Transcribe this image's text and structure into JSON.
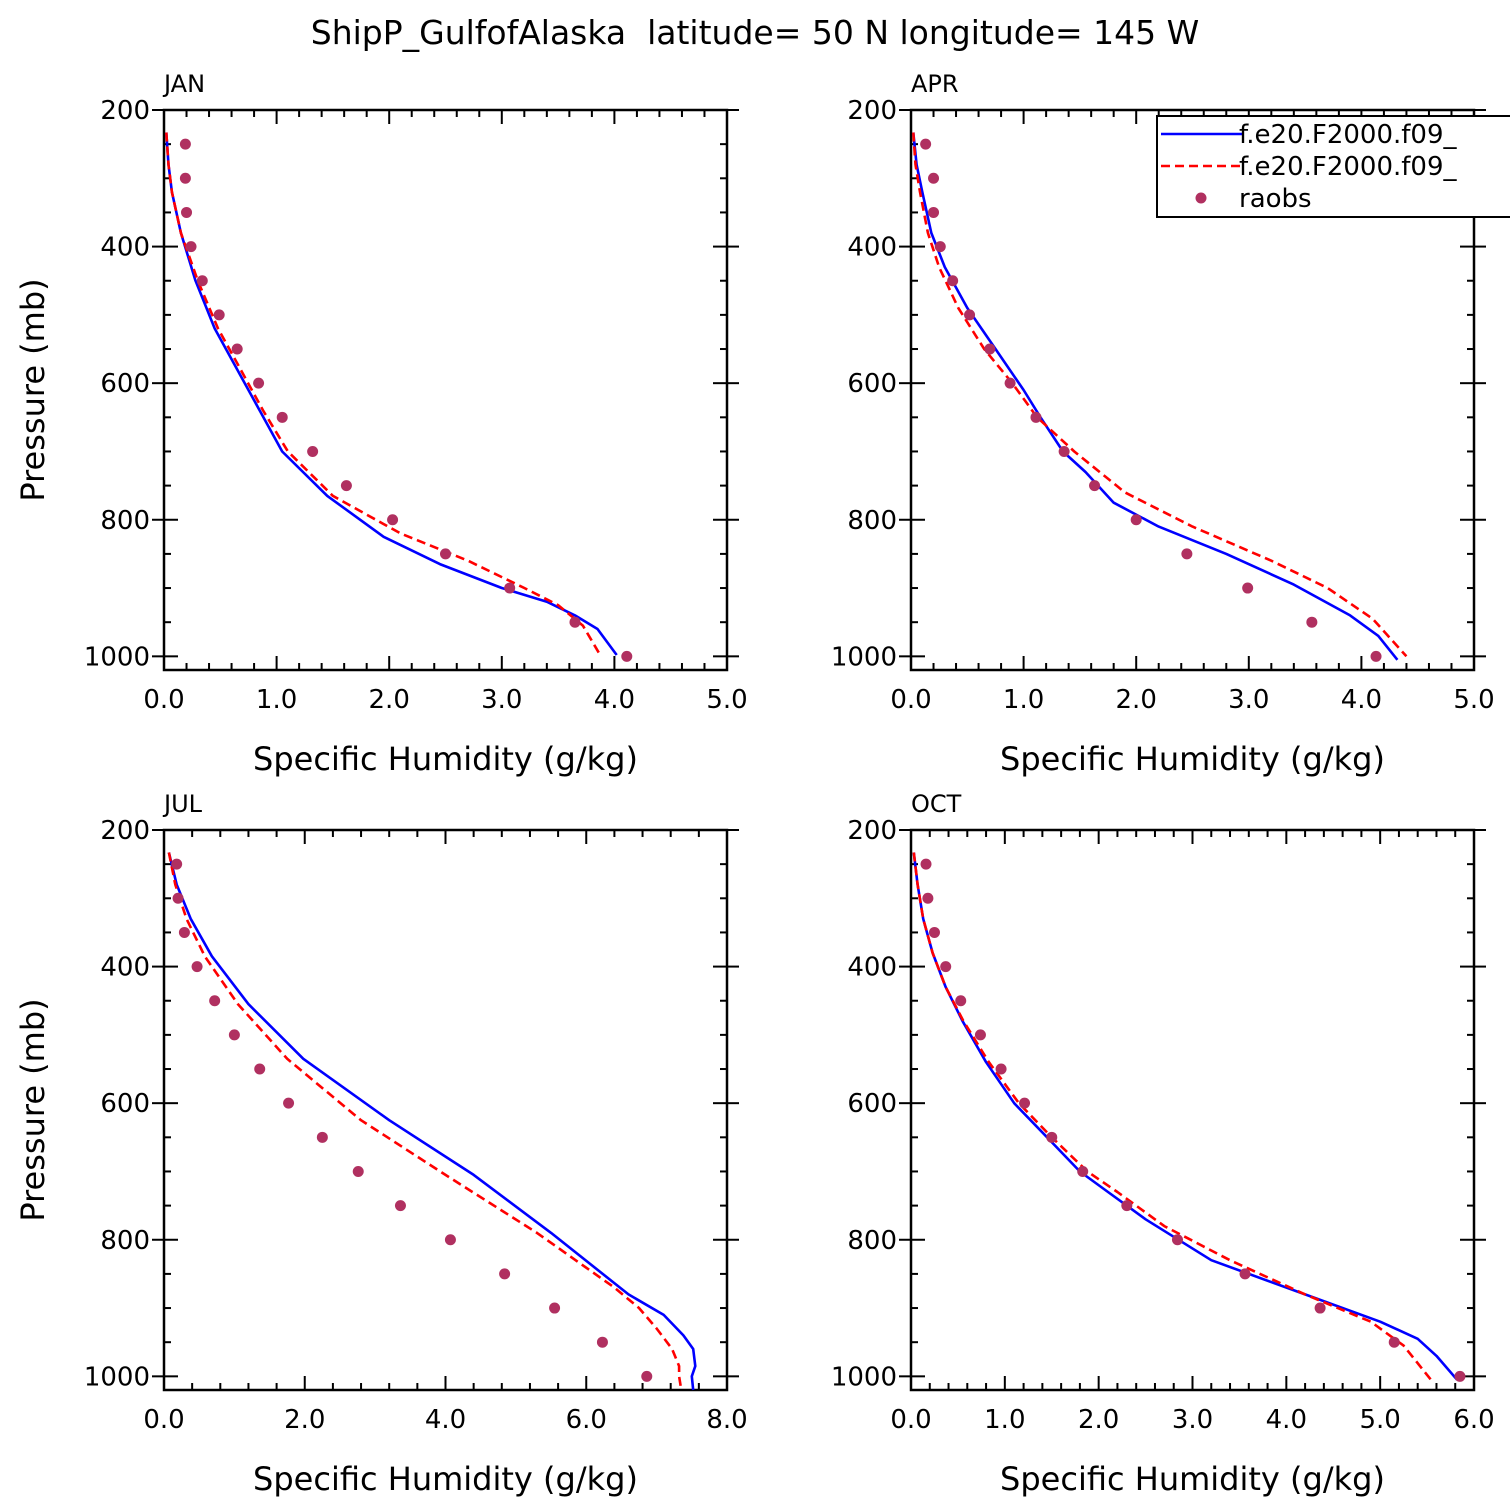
{
  "figure": {
    "title": "ShipP_GulfofAlaska  latitude= 50 N longitude= 145 W"
  },
  "legend": {
    "placement": "top-right",
    "entries": [
      {
        "label": "f.e20.F2000.f09_",
        "style": "solid",
        "color": "#0000ff"
      },
      {
        "label": "f.e20.F2000.f09_",
        "style": "dashed",
        "color": "#ff0000"
      },
      {
        "label": "raobs",
        "style": "marker",
        "color": "#b03060"
      }
    ]
  },
  "chart_data": [
    {
      "type": "line",
      "title": "JAN",
      "xlabel": "Specific Humidity (g/kg)",
      "ylabel": "Pressure (mb)",
      "xlim": [
        0,
        5
      ],
      "ylim": [
        1020,
        200
      ],
      "xticks": [
        0,
        1,
        2,
        3,
        4,
        5
      ],
      "xtick_labels": [
        "0.0",
        "1.0",
        "2.0",
        "3.0",
        "4.0",
        "5.0"
      ],
      "yticks": [
        200,
        400,
        600,
        800,
        1000
      ],
      "ytick_labels": [
        "200",
        "400",
        "600",
        "800",
        "1000"
      ],
      "series": [
        {
          "name": "f.e20.F2000.f09_",
          "style": "solid",
          "color": "#0000ff",
          "x": [
            0.02,
            0.04,
            0.07,
            0.15,
            0.28,
            0.45,
            0.65,
            0.85,
            1.05,
            1.45,
            1.95,
            2.45,
            3.0,
            3.4,
            3.65,
            3.85,
            4.02
          ],
          "y": [
            233,
            280,
            320,
            380,
            450,
            520,
            580,
            640,
            700,
            765,
            825,
            865,
            900,
            920,
            940,
            960,
            998
          ]
        },
        {
          "name": "f.e20.F2000.f09_",
          "style": "dashed",
          "color": "#ff0000",
          "x": [
            0.02,
            0.04,
            0.07,
            0.15,
            0.3,
            0.48,
            0.68,
            0.88,
            1.1,
            1.5,
            2.1,
            2.7,
            3.2,
            3.5,
            3.72,
            3.88
          ],
          "y": [
            233,
            280,
            320,
            380,
            450,
            520,
            580,
            640,
            700,
            765,
            820,
            860,
            900,
            925,
            955,
            1000
          ]
        }
      ],
      "points": {
        "name": "raobs",
        "color": "#b03060",
        "x": [
          0.19,
          0.19,
          0.2,
          0.24,
          0.34,
          0.49,
          0.65,
          0.84,
          1.05,
          1.32,
          1.62,
          2.03,
          2.5,
          3.07,
          3.65,
          4.11
        ],
        "y": [
          250,
          300,
          350,
          400,
          450,
          500,
          550,
          600,
          650,
          700,
          750,
          800,
          850,
          900,
          950,
          1000
        ]
      }
    },
    {
      "type": "line",
      "title": "APR",
      "xlabel": "Specific Humidity (g/kg)",
      "ylabel": "",
      "xlim": [
        0,
        5
      ],
      "ylim": [
        1020,
        200
      ],
      "xticks": [
        0,
        1,
        2,
        3,
        4,
        5
      ],
      "xtick_labels": [
        "0.0",
        "1.0",
        "2.0",
        "3.0",
        "4.0",
        "5.0"
      ],
      "yticks": [
        200,
        400,
        600,
        800,
        1000
      ],
      "ytick_labels": [
        "200",
        "400",
        "600",
        "800",
        "1000"
      ],
      "series": [
        {
          "name": "f.e20.F2000.f09_",
          "style": "solid",
          "color": "#0000ff",
          "x": [
            0.02,
            0.05,
            0.1,
            0.18,
            0.3,
            0.5,
            0.75,
            1.0,
            1.15,
            1.35,
            1.55,
            1.8,
            2.2,
            2.8,
            3.4,
            3.9,
            4.15,
            4.32
          ],
          "y": [
            233,
            280,
            320,
            380,
            430,
            490,
            550,
            610,
            650,
            700,
            730,
            775,
            810,
            850,
            895,
            940,
            970,
            1005
          ]
        },
        {
          "name": "f.e20.F2000.f09_",
          "style": "dashed",
          "color": "#ff0000",
          "x": [
            0.02,
            0.04,
            0.08,
            0.15,
            0.25,
            0.42,
            0.65,
            0.9,
            1.12,
            1.45,
            1.9,
            2.5,
            3.2,
            3.7,
            4.1,
            4.4
          ],
          "y": [
            233,
            280,
            320,
            380,
            430,
            490,
            550,
            600,
            650,
            700,
            760,
            810,
            860,
            900,
            945,
            1000
          ]
        }
      ],
      "points": {
        "name": "raobs",
        "color": "#b03060",
        "x": [
          0.13,
          0.2,
          0.2,
          0.26,
          0.37,
          0.52,
          0.7,
          0.88,
          1.11,
          1.36,
          1.63,
          2.0,
          2.45,
          2.99,
          3.56,
          4.13
        ],
        "y": [
          250,
          300,
          350,
          400,
          450,
          500,
          550,
          600,
          650,
          700,
          750,
          800,
          850,
          900,
          950,
          1000
        ]
      }
    },
    {
      "type": "line",
      "title": "JUL",
      "xlabel": "Specific Humidity (g/kg)",
      "ylabel": "Pressure (mb)",
      "xlim": [
        0,
        8
      ],
      "ylim": [
        1020,
        200
      ],
      "xticks": [
        0,
        2,
        4,
        6,
        8
      ],
      "xtick_labels": [
        "0.0",
        "2.0",
        "4.0",
        "6.0",
        "8.0"
      ],
      "yticks": [
        200,
        400,
        600,
        800,
        1000
      ],
      "ytick_labels": [
        "200",
        "400",
        "600",
        "800",
        "1000"
      ],
      "series": [
        {
          "name": "f.e20.F2000.f09_",
          "style": "solid",
          "color": "#0000ff",
          "x": [
            0.07,
            0.18,
            0.38,
            0.68,
            1.2,
            1.98,
            3.2,
            4.4,
            5.5,
            6.6,
            7.1,
            7.38,
            7.52,
            7.55,
            7.5,
            7.52
          ],
          "y": [
            233,
            280,
            330,
            385,
            455,
            535,
            625,
            705,
            790,
            880,
            910,
            940,
            960,
            985,
            1000,
            1020
          ]
        },
        {
          "name": "f.e20.F2000.f09_",
          "style": "dashed",
          "color": "#ff0000",
          "x": [
            0.07,
            0.16,
            0.32,
            0.58,
            1.05,
            1.75,
            2.8,
            4.0,
            5.3,
            6.4,
            6.75,
            7.0,
            7.22,
            7.32,
            7.32,
            7.35
          ],
          "y": [
            233,
            280,
            330,
            385,
            455,
            535,
            625,
            705,
            790,
            870,
            900,
            930,
            960,
            985,
            1000,
            1020
          ]
        }
      ],
      "points": {
        "name": "raobs",
        "color": "#b03060",
        "x": [
          0.18,
          0.2,
          0.29,
          0.47,
          0.72,
          1.0,
          1.36,
          1.77,
          2.25,
          2.76,
          3.36,
          4.07,
          4.84,
          5.55,
          6.23,
          6.86
        ],
        "y": [
          250,
          300,
          350,
          400,
          450,
          500,
          550,
          600,
          650,
          700,
          750,
          800,
          850,
          900,
          950,
          1000
        ]
      }
    },
    {
      "type": "line",
      "title": "OCT",
      "xlabel": "Specific Humidity (g/kg)",
      "ylabel": "",
      "xlim": [
        0,
        6
      ],
      "ylim": [
        1020,
        200
      ],
      "xticks": [
        0,
        1,
        2,
        3,
        4,
        5,
        6
      ],
      "xtick_labels": [
        "0.0",
        "1.0",
        "2.0",
        "3.0",
        "4.0",
        "5.0",
        "6.0"
      ],
      "yticks": [
        200,
        400,
        600,
        800,
        1000
      ],
      "ytick_labels": [
        "200",
        "400",
        "600",
        "800",
        "1000"
      ],
      "series": [
        {
          "name": "f.e20.F2000.f09_",
          "style": "solid",
          "color": "#0000ff",
          "x": [
            0.03,
            0.07,
            0.13,
            0.23,
            0.37,
            0.55,
            0.8,
            1.1,
            1.45,
            1.8,
            2.1,
            2.5,
            3.2,
            4.2,
            5.0,
            5.4,
            5.6,
            5.82
          ],
          "y": [
            233,
            280,
            330,
            380,
            430,
            480,
            540,
            600,
            650,
            700,
            730,
            770,
            830,
            880,
            920,
            945,
            970,
            1005
          ]
        },
        {
          "name": "f.e20.F2000.f09_",
          "style": "dashed",
          "color": "#ff0000",
          "x": [
            0.03,
            0.07,
            0.13,
            0.23,
            0.37,
            0.56,
            0.83,
            1.15,
            1.5,
            1.88,
            2.2,
            2.7,
            3.4,
            4.2,
            4.9,
            5.25,
            5.57
          ],
          "y": [
            233,
            280,
            330,
            380,
            430,
            480,
            540,
            600,
            650,
            700,
            730,
            780,
            830,
            880,
            920,
            955,
            1010
          ]
        }
      ],
      "points": {
        "name": "raobs",
        "color": "#b03060",
        "x": [
          0.16,
          0.18,
          0.25,
          0.37,
          0.53,
          0.74,
          0.96,
          1.21,
          1.5,
          1.83,
          2.3,
          2.84,
          3.56,
          4.36,
          5.15,
          5.85
        ],
        "y": [
          250,
          300,
          350,
          400,
          450,
          500,
          550,
          600,
          650,
          700,
          750,
          800,
          850,
          900,
          950,
          1000
        ]
      }
    }
  ]
}
